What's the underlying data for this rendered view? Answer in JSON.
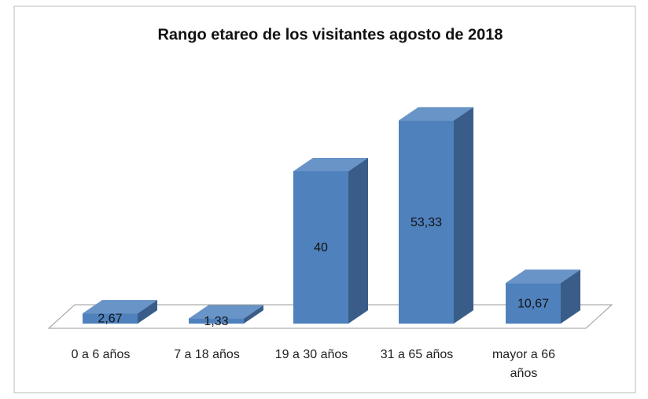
{
  "chart_data": {
    "type": "bar3d",
    "title": "Rango etareo de los visitantes agosto de 2018",
    "categories": [
      "0 a 6 años",
      "7 a 18 años",
      "19 a 30 años",
      "31 a 65 años",
      "mayor a 66 años"
    ],
    "values": [
      2.67,
      1.33,
      40,
      53.33,
      10.67
    ],
    "value_labels": [
      "2,67",
      "1,33",
      "40",
      "53,33",
      "10,67"
    ],
    "color": "#4f81bd"
  }
}
